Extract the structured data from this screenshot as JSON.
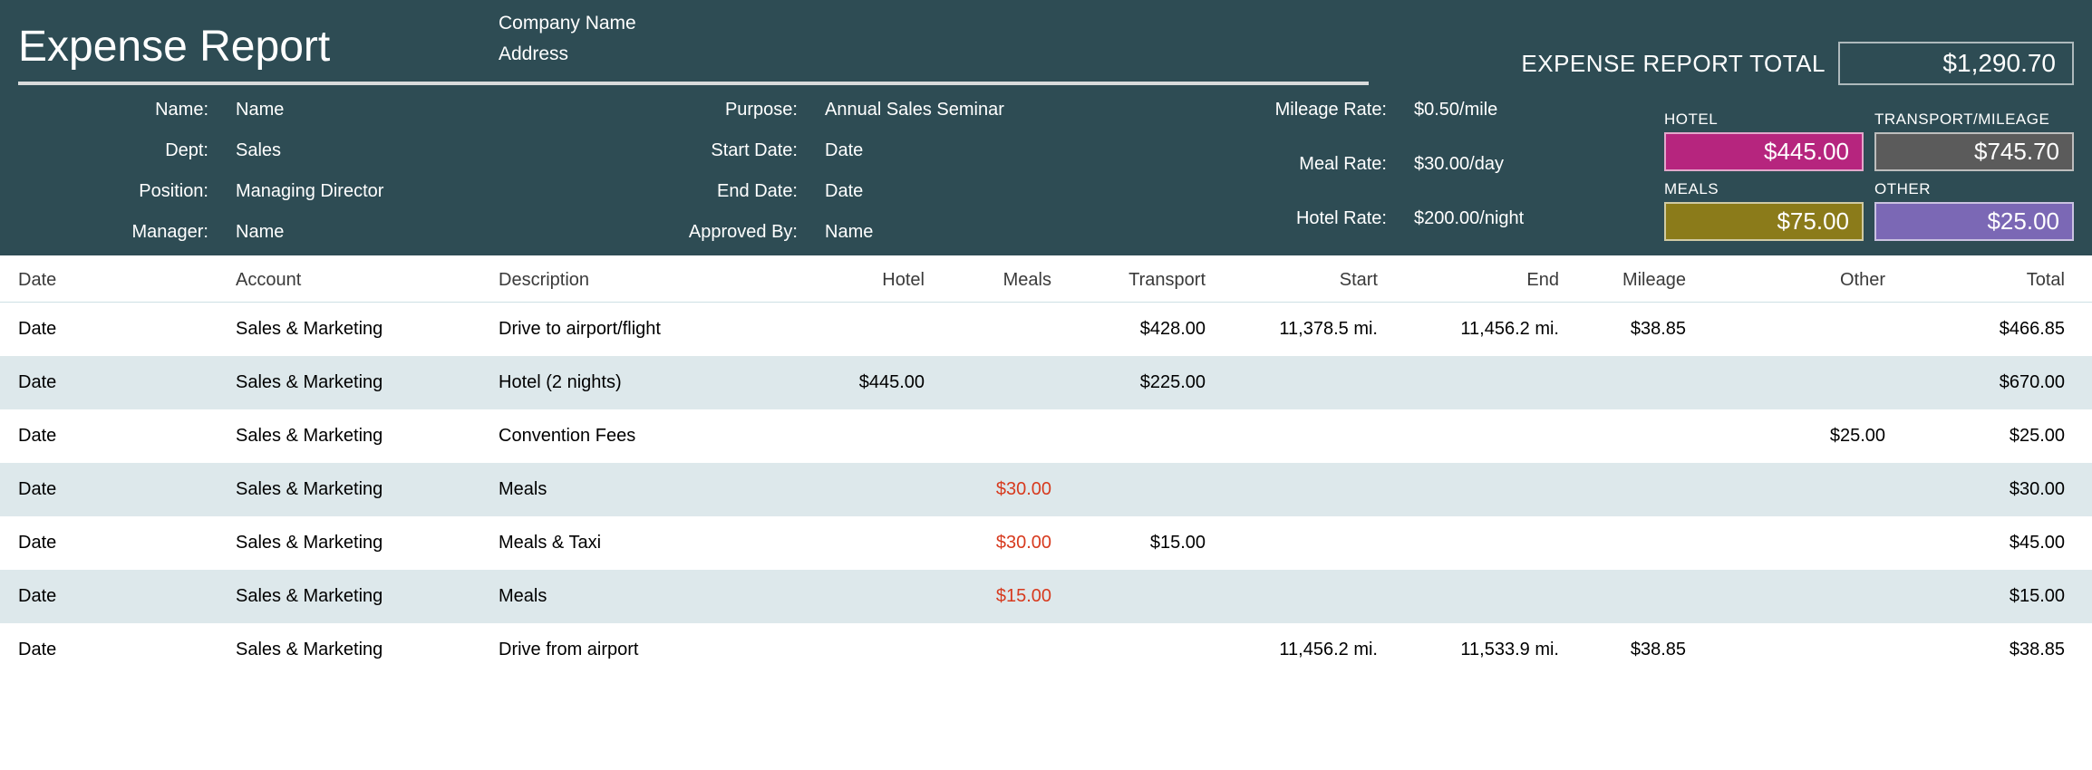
{
  "colors": {
    "header_bg": "#2e4c54",
    "row_alt_bg": "#dde8eb",
    "red_text": "#d73a1e",
    "sum_hotel": "#b6257e",
    "sum_transport": "#5b5b5b",
    "sum_meals": "#8b7b1a",
    "sum_other": "#7b68b5"
  },
  "title": "Expense Report",
  "company": {
    "name": "Company Name",
    "address": "Address"
  },
  "total": {
    "label": "EXPENSE REPORT TOTAL",
    "value": "$1,290.70"
  },
  "info": {
    "name": {
      "label": "Name:",
      "value": "Name"
    },
    "dept": {
      "label": "Dept:",
      "value": "Sales"
    },
    "position": {
      "label": "Position:",
      "value": "Managing Director"
    },
    "manager": {
      "label": "Manager:",
      "value": "Name"
    },
    "purpose": {
      "label": "Purpose:",
      "value": "Annual Sales Seminar"
    },
    "start": {
      "label": "Start Date:",
      "value": "Date"
    },
    "end": {
      "label": "End Date:",
      "value": "Date"
    },
    "approved": {
      "label": "Approved By:",
      "value": "Name"
    },
    "mileage_rate": {
      "label": "Mileage Rate:",
      "value": "$0.50/mile"
    },
    "meal_rate": {
      "label": "Meal Rate:",
      "value": "$30.00/day"
    },
    "hotel_rate": {
      "label": "Hotel Rate:",
      "value": "$200.00/night"
    }
  },
  "summary": {
    "hotel": {
      "label": "HOTEL",
      "value": "$445.00"
    },
    "transport": {
      "label": "TRANSPORT/MILEAGE",
      "value": "$745.70"
    },
    "meals": {
      "label": "MEALS",
      "value": "$75.00"
    },
    "other": {
      "label": "OTHER",
      "value": "$25.00"
    }
  },
  "table": {
    "columns": {
      "date": "Date",
      "account": "Account",
      "description": "Description",
      "hotel": "Hotel",
      "meals": "Meals",
      "transport": "Transport",
      "start": "Start",
      "end": "End",
      "mileage": "Mileage",
      "other": "Other",
      "total": "Total"
    },
    "rows": [
      {
        "date": "Date",
        "account": "Sales & Marketing",
        "description": "Drive to airport/flight",
        "hotel": "",
        "meals": "",
        "meals_red": false,
        "transport": "$428.00",
        "start": "11,378.5  mi.",
        "end": "11,456.2  mi.",
        "mileage": "$38.85",
        "other": "",
        "total": "$466.85"
      },
      {
        "date": "Date",
        "account": "Sales & Marketing",
        "description": "Hotel (2 nights)",
        "hotel": "$445.00",
        "meals": "",
        "meals_red": false,
        "transport": "$225.00",
        "start": "",
        "end": "",
        "mileage": "",
        "other": "",
        "total": "$670.00"
      },
      {
        "date": "Date",
        "account": "Sales & Marketing",
        "description": "Convention Fees",
        "hotel": "",
        "meals": "",
        "meals_red": false,
        "transport": "",
        "start": "",
        "end": "",
        "mileage": "",
        "other": "$25.00",
        "total": "$25.00"
      },
      {
        "date": "Date",
        "account": "Sales & Marketing",
        "description": "Meals",
        "hotel": "",
        "meals": "$30.00",
        "meals_red": true,
        "transport": "",
        "start": "",
        "end": "",
        "mileage": "",
        "other": "",
        "total": "$30.00"
      },
      {
        "date": "Date",
        "account": "Sales & Marketing",
        "description": "Meals & Taxi",
        "hotel": "",
        "meals": "$30.00",
        "meals_red": true,
        "transport": "$15.00",
        "start": "",
        "end": "",
        "mileage": "",
        "other": "",
        "total": "$45.00"
      },
      {
        "date": "Date",
        "account": "Sales & Marketing",
        "description": "Meals",
        "hotel": "",
        "meals": "$15.00",
        "meals_red": true,
        "transport": "",
        "start": "",
        "end": "",
        "mileage": "",
        "other": "",
        "total": "$15.00"
      },
      {
        "date": "Date",
        "account": "Sales & Marketing",
        "description": "Drive from airport",
        "hotel": "",
        "meals": "",
        "meals_red": false,
        "transport": "",
        "start": "11,456.2  mi.",
        "end": "11,533.9  mi.",
        "mileage": "$38.85",
        "other": "",
        "total": "$38.85"
      }
    ]
  }
}
